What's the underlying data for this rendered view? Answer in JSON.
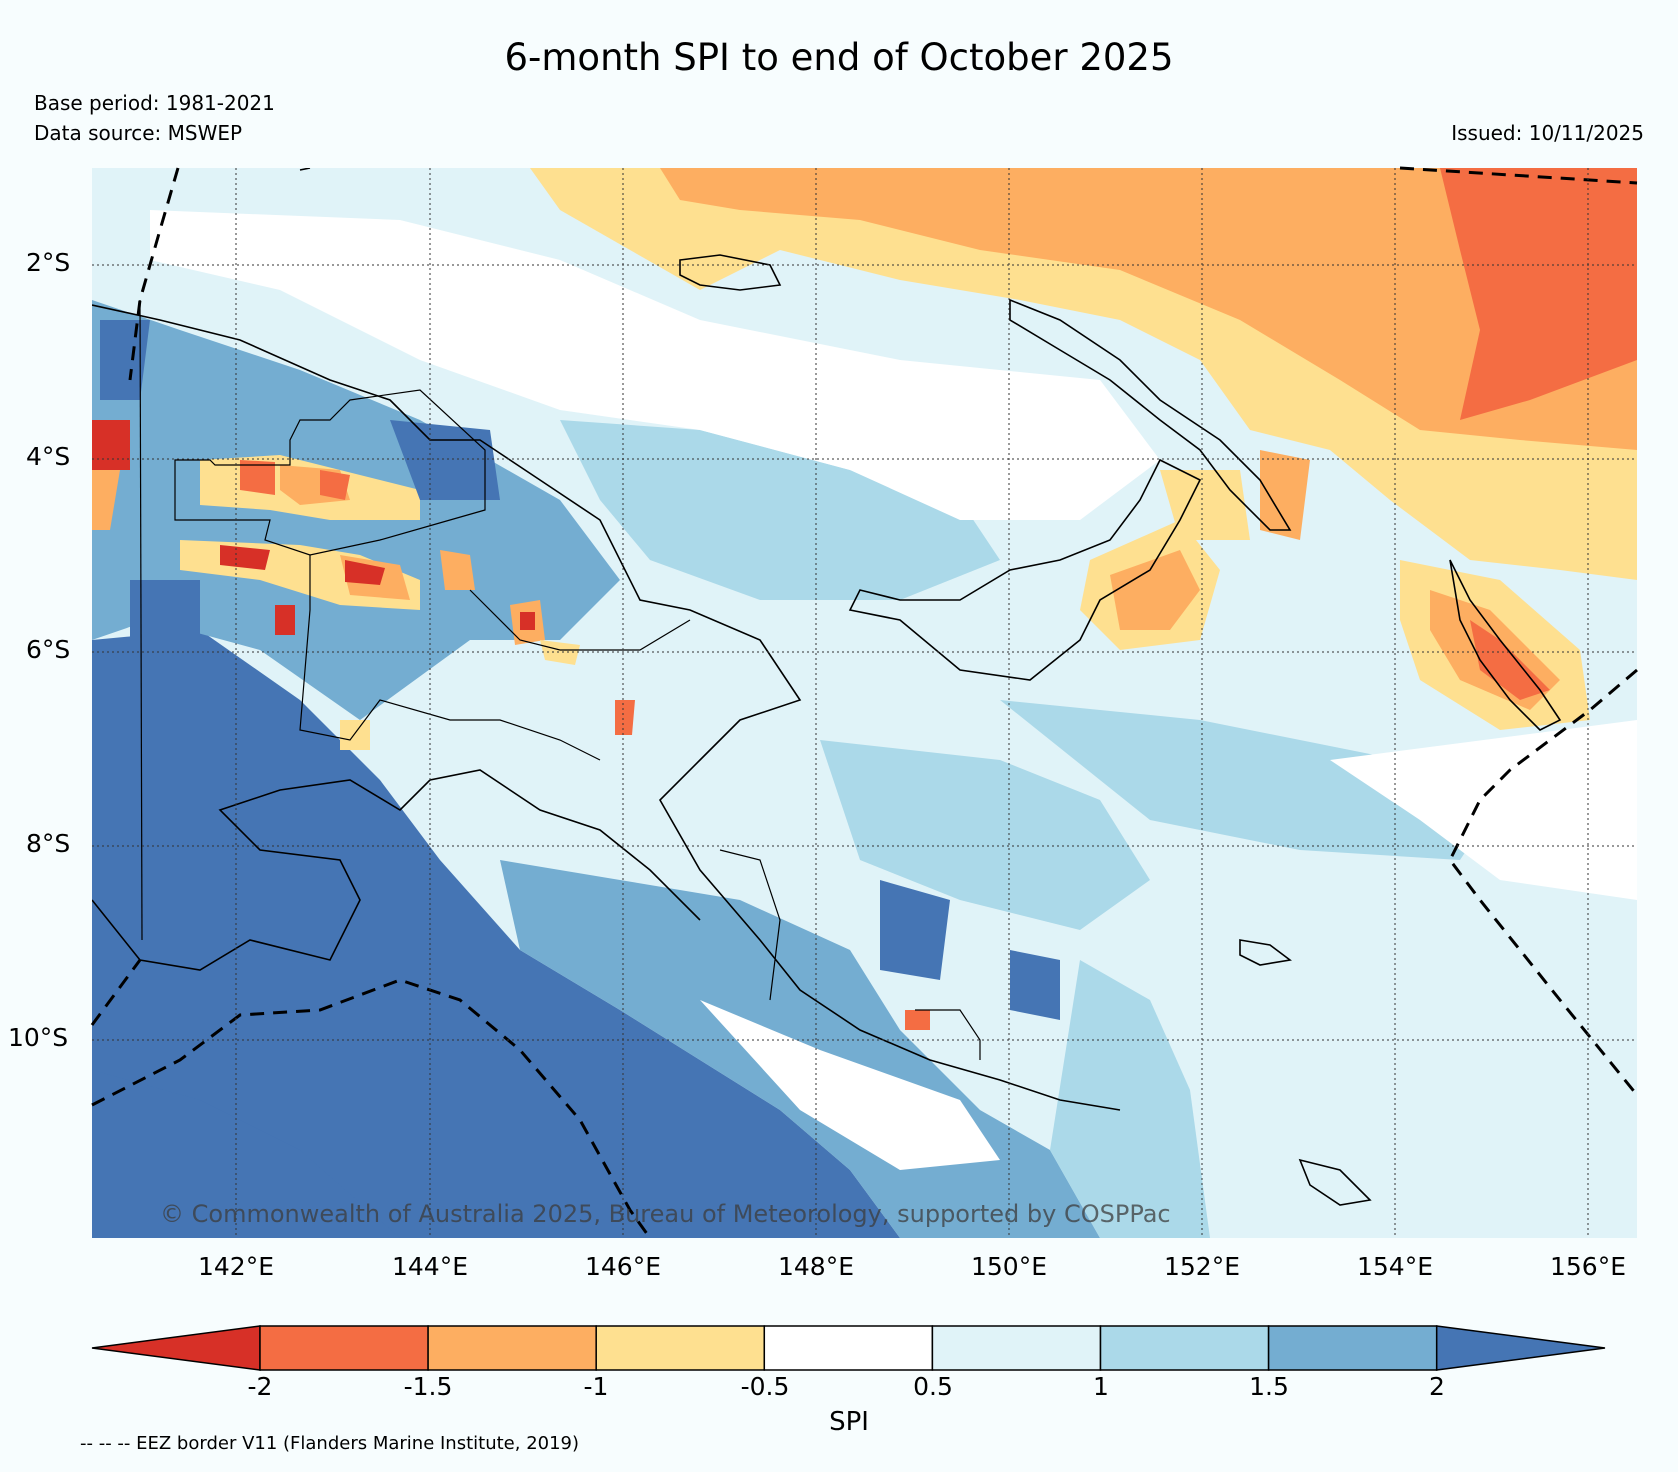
{
  "title": "6-month SPI to end of October 2025",
  "meta": {
    "base_period": "Base period: 1981-2021",
    "data_source": "Data source: MSWEP",
    "issued": "Issued: 10/11/2025"
  },
  "map": {
    "lat_labels": [
      "2°S",
      "4°S",
      "6°S",
      "8°S",
      "10°S"
    ],
    "lon_labels": [
      "142°E",
      "144°E",
      "146°E",
      "148°E",
      "150°E",
      "152°E",
      "154°E",
      "156°E"
    ],
    "copyright": "© Commonwealth of Australia 2025, Bureau of Meteorology, supported by COSPPac"
  },
  "colorbar": {
    "title": "SPI",
    "tick_labels": [
      "-2",
      "-1.5",
      "-1",
      "-0.5",
      "0.5",
      "1",
      "1.5",
      "2"
    ],
    "colors": [
      "#d73027",
      "#f46d43",
      "#fdae61",
      "#fee090",
      "#ffffff",
      "#e0f3f8",
      "#abd9e9",
      "#74add1",
      "#4575b4"
    ]
  },
  "footnote": "-- -- -- EEZ border V11 (Flanders Marine Institute, 2019)"
}
